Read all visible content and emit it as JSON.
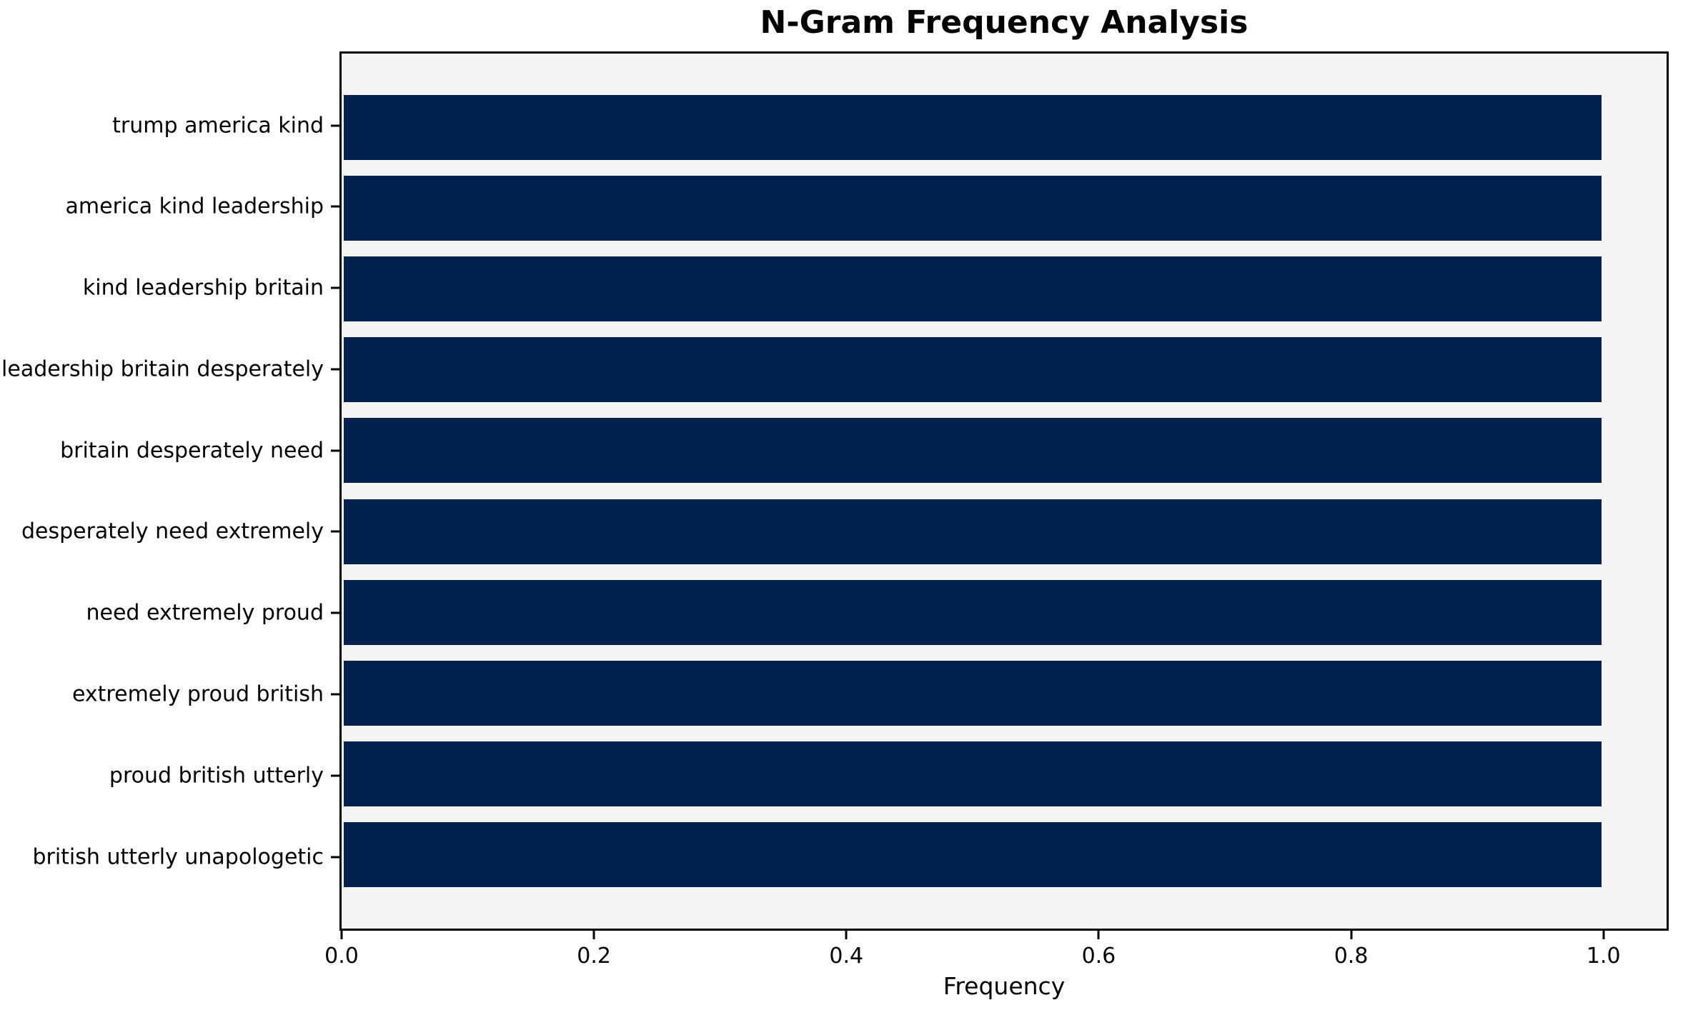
{
  "chart_data": {
    "type": "bar",
    "orientation": "horizontal",
    "title": "N-Gram Frequency Analysis",
    "xlabel": "Frequency",
    "ylabel": "",
    "categories": [
      "trump america kind",
      "america kind leadership",
      "kind leadership britain",
      "leadership britain desperately",
      "britain desperately need",
      "desperately need extremely",
      "need extremely proud",
      "extremely proud british",
      "proud british utterly",
      "british utterly unapologetic"
    ],
    "values": [
      1.0,
      1.0,
      1.0,
      1.0,
      1.0,
      1.0,
      1.0,
      1.0,
      1.0,
      1.0
    ],
    "xlim": [
      0.0,
      1.05
    ],
    "xticks": [
      0.0,
      0.2,
      0.4,
      0.6,
      0.8,
      1.0
    ],
    "xtick_labels": [
      "0.0",
      "0.2",
      "0.4",
      "0.6",
      "0.8",
      "1.0"
    ],
    "grid": false,
    "legend_position": "none",
    "bar_color": "#01224d",
    "plot_background": "#f5f5f5",
    "spine_color": "#000000"
  }
}
